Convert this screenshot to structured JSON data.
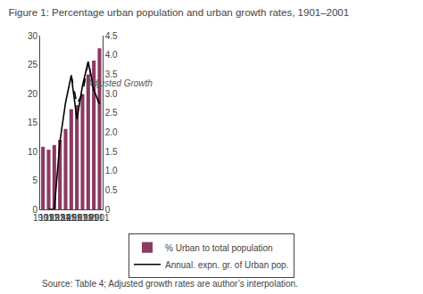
{
  "chart_data": {
    "type": "bar",
    "title": "Figure 1: Percentage urban population and urban growth rates, 1901–2001",
    "categories": [
      "1901",
      "1911",
      "1921",
      "1931",
      "1941",
      "1951",
      "1961",
      "1971",
      "1981",
      "1991",
      "2001"
    ],
    "series": [
      {
        "name": "% Urban to total population",
        "type": "bar",
        "color": "#8B3A62",
        "values": [
          10.8,
          10.3,
          11.1,
          11.99,
          13.9,
          17.3,
          18.0,
          19.9,
          23.3,
          25.7,
          27.8
        ]
      },
      {
        "name": "Annual. expn. gr. of Urban pop.",
        "type": "line",
        "axis": "y2",
        "color": "#000000",
        "line_style": "solid",
        "values": [
          null,
          0.0,
          0.0,
          1.76,
          2.77,
          3.47,
          2.34,
          3.21,
          3.83,
          3.09,
          2.73
        ]
      },
      {
        "type": "line",
        "axis": "y2",
        "color": "#000000",
        "line_style": "dashed",
        "values": [
          null,
          null,
          null,
          null,
          null,
          3.47,
          2.73,
          3.0,
          3.83,
          3.09,
          2.73
        ]
      }
    ],
    "ylim": [
      0,
      30
    ],
    "yticks": [
      0,
      5,
      10,
      15,
      20,
      25,
      30
    ],
    "y2lim": [
      0,
      4.5
    ],
    "y2ticks": [
      0,
      0.5,
      {
        "value": 1.0,
        "label": "1.0"
      },
      1.5,
      {
        "value": 2.0,
        "label": "2.0"
      },
      2.5,
      {
        "value": 3.0,
        "label": "3.0"
      },
      3.5,
      {
        "value": 4.0,
        "label": "4.0"
      },
      4.5
    ],
    "annotations": [
      {
        "text": "Adjusted Growth",
        "x": 7.3,
        "y": 3.1,
        "axis": "y2"
      },
      {
        "text": "Source: Table 4; Adjusted growth rates are author’s interpolation."
      }
    ],
    "grid": false,
    "legend": "bottom"
  }
}
